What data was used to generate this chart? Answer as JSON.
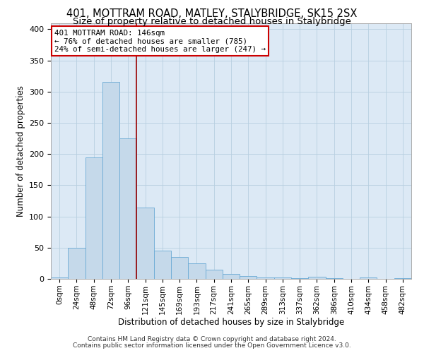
{
  "title1": "401, MOTTRAM ROAD, MATLEY, STALYBRIDGE, SK15 2SX",
  "title2": "Size of property relative to detached houses in Stalybridge",
  "xlabel": "Distribution of detached houses by size in Stalybridge",
  "ylabel": "Number of detached properties",
  "footnote1": "Contains HM Land Registry data © Crown copyright and database right 2024.",
  "footnote2": "Contains public sector information licensed under the Open Government Licence v3.0.",
  "bar_labels": [
    "0sqm",
    "24sqm",
    "48sqm",
    "72sqm",
    "96sqm",
    "121sqm",
    "145sqm",
    "169sqm",
    "193sqm",
    "217sqm",
    "241sqm",
    "265sqm",
    "289sqm",
    "313sqm",
    "337sqm",
    "362sqm",
    "386sqm",
    "410sqm",
    "434sqm",
    "458sqm",
    "482sqm"
  ],
  "bar_values": [
    2,
    50,
    195,
    315,
    225,
    114,
    45,
    35,
    25,
    15,
    8,
    4,
    2,
    2,
    1,
    3,
    1,
    0,
    2,
    0,
    1
  ],
  "bar_color": "#c5d9ea",
  "bar_edge_color": "#6aaad4",
  "annotation_line1": "401 MOTTRAM ROAD: 146sqm",
  "annotation_line2": "← 76% of detached houses are smaller (785)",
  "annotation_line3": "24% of semi-detached houses are larger (247) →",
  "annotation_box_color": "#ffffff",
  "annotation_box_edge_color": "#cc0000",
  "vline_color": "#990000",
  "bg_color": "#dce9f5",
  "ylim": [
    0,
    410
  ],
  "yticks": [
    0,
    50,
    100,
    150,
    200,
    250,
    300,
    350,
    400
  ],
  "title_fontsize": 10.5,
  "subtitle_fontsize": 9.5,
  "axis_label_fontsize": 8.5,
  "tick_fontsize": 7.5,
  "footnote_fontsize": 6.5,
  "vline_x": 4.5
}
